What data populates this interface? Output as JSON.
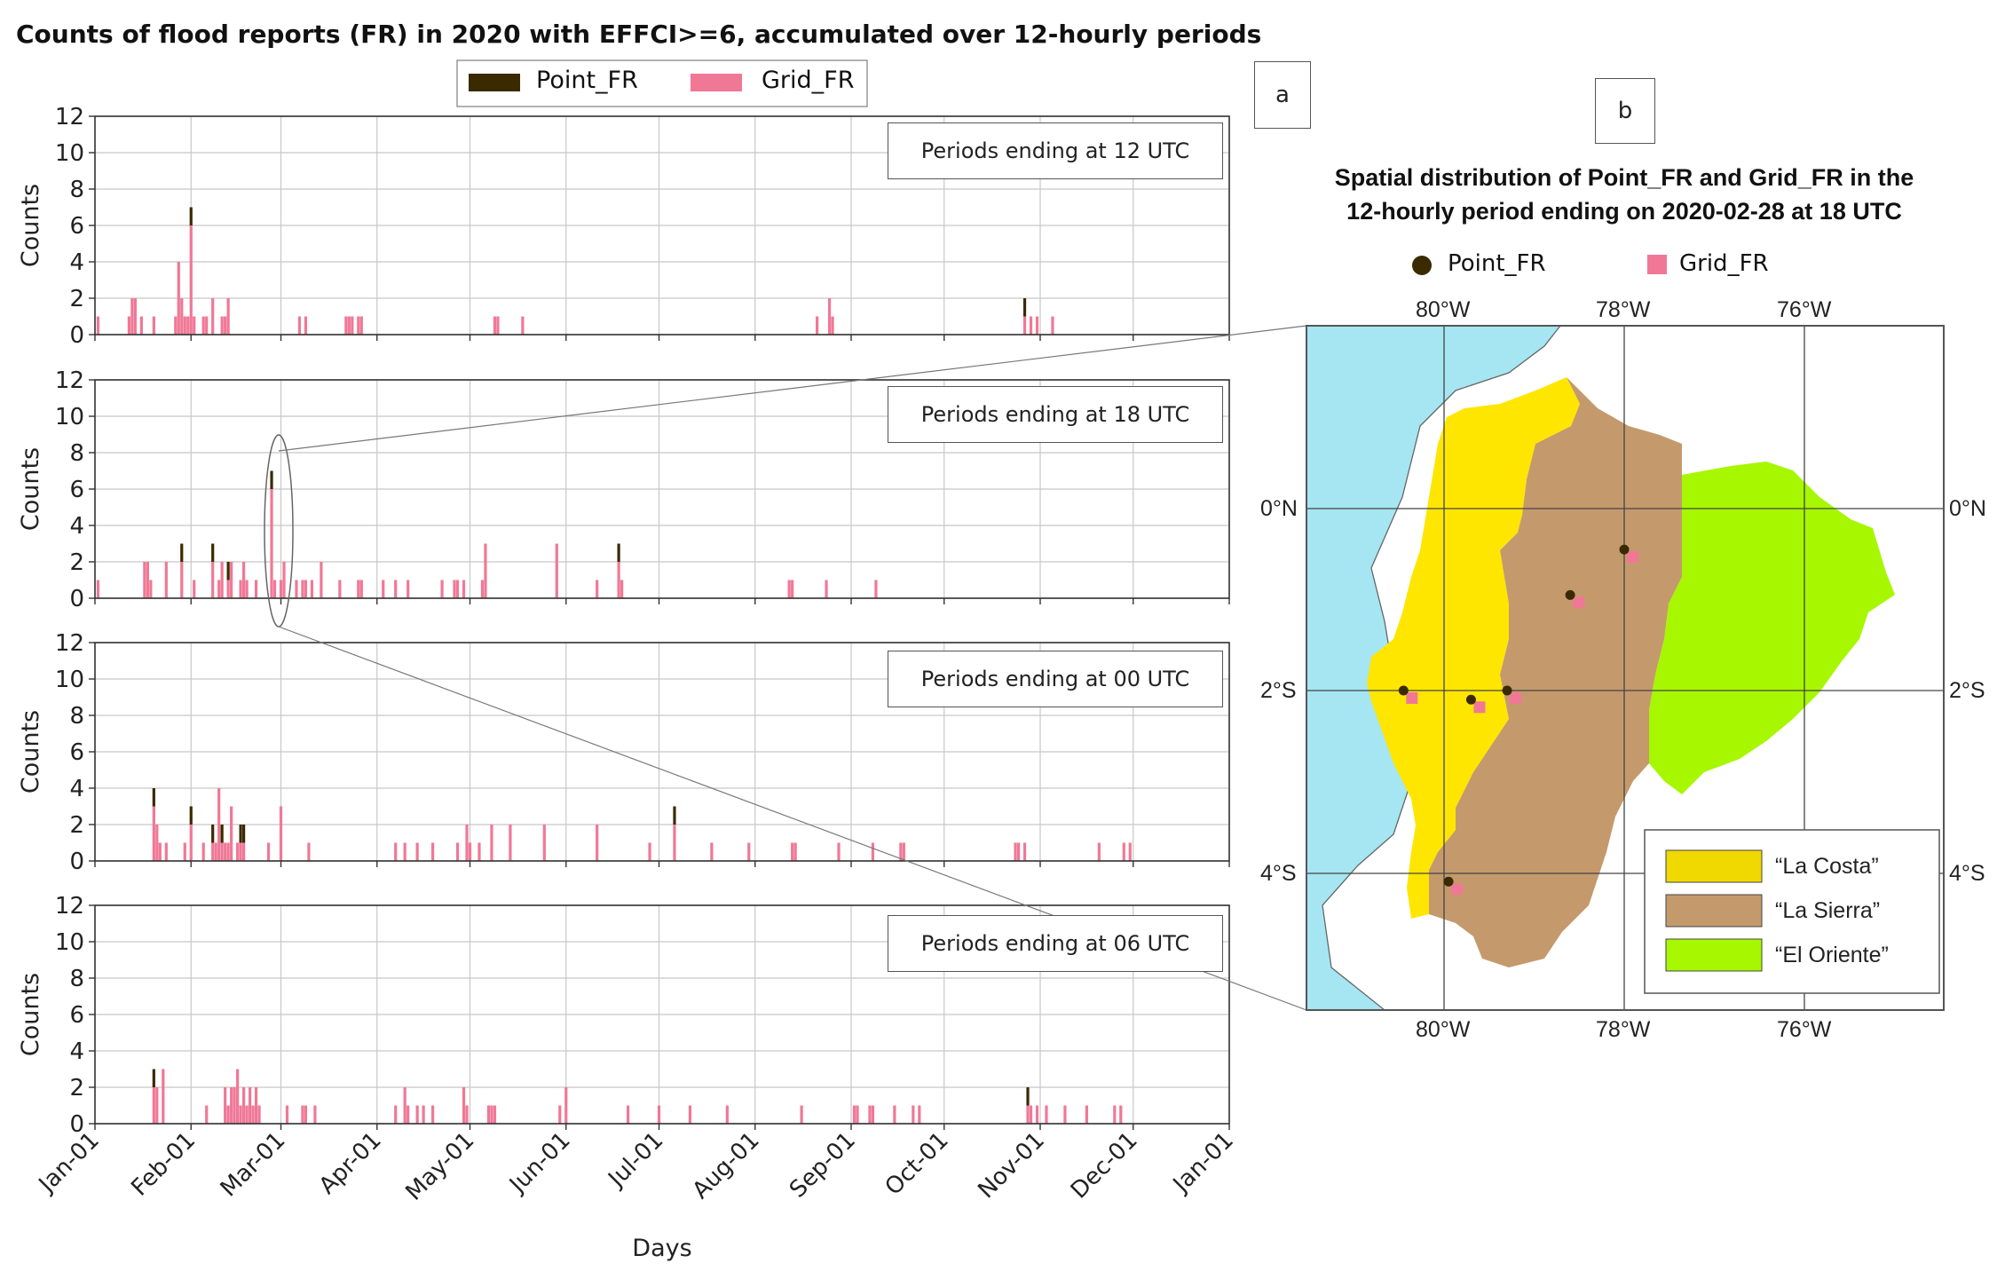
{
  "figure_title": "Counts of flood reports (FR) in 2020 with EFFCI>=6, accumulated over 12-hourly periods",
  "panel_labels": {
    "a": "a",
    "b": "b"
  },
  "legend": {
    "point": "Point_FR",
    "grid": "Grid_FR"
  },
  "colors": {
    "point": "#3a2a00",
    "grid": "#f07896",
    "ocean": "#a5e6f2",
    "costa": "#fee600",
    "sierra": "#c49a6c",
    "oriente": "#a6f700"
  },
  "chart_data": [
    {
      "type": "bar",
      "title": "Periods ending at 12 UTC",
      "ylabel": "Counts",
      "xlabel": "Days",
      "ylim": [
        0,
        12
      ],
      "yticks": [
        0,
        2,
        4,
        6,
        8,
        10,
        12
      ],
      "xticks": [
        "Jan-01",
        "Feb-01",
        "Mar-01",
        "Apr-01",
        "May-01",
        "Jun-01",
        "Jul-01",
        "Aug-01",
        "Sep-01",
        "Oct-01",
        "Nov-01",
        "Dec-01",
        "Jan-01"
      ],
      "x": [
        "2020-01-02",
        "2020-01-12",
        "2020-01-13",
        "2020-01-14",
        "2020-01-16",
        "2020-01-20",
        "2020-01-27",
        "2020-01-28",
        "2020-01-29",
        "2020-01-30",
        "2020-01-31",
        "2020-02-01",
        "2020-02-02",
        "2020-02-05",
        "2020-02-06",
        "2020-02-08",
        "2020-02-11",
        "2020-02-12",
        "2020-02-13",
        "2020-03-07",
        "2020-03-09",
        "2020-03-22",
        "2020-03-23",
        "2020-03-24",
        "2020-03-26",
        "2020-03-27",
        "2020-05-09",
        "2020-05-10",
        "2020-05-18",
        "2020-08-21",
        "2020-08-25",
        "2020-08-26",
        "2020-10-27",
        "2020-10-29",
        "2020-10-31",
        "2020-11-05"
      ],
      "series": [
        {
          "name": "Point_FR",
          "values": [
            0,
            0,
            0,
            0,
            0,
            0,
            0,
            0,
            0,
            0,
            0,
            1,
            0,
            0,
            0,
            0,
            0,
            0,
            0,
            0,
            0,
            0,
            0,
            0,
            0,
            0,
            0,
            0,
            0,
            0,
            0,
            0,
            1,
            0,
            0,
            0
          ]
        },
        {
          "name": "Grid_FR",
          "values": [
            1,
            1,
            2,
            2,
            1,
            1,
            1,
            4,
            2,
            1,
            1,
            6,
            1,
            1,
            1,
            2,
            1,
            1,
            2,
            1,
            1,
            1,
            1,
            1,
            1,
            1,
            1,
            1,
            1,
            1,
            2,
            1,
            1,
            1,
            1,
            1
          ]
        }
      ]
    },
    {
      "type": "bar",
      "title": "Periods ending at 18 UTC",
      "ylabel": "Counts",
      "xlabel": "Days",
      "ylim": [
        0,
        12
      ],
      "yticks": [
        0,
        2,
        4,
        6,
        8,
        10,
        12
      ],
      "xticks": [
        "Jan-01",
        "Feb-01",
        "Mar-01",
        "Apr-01",
        "May-01",
        "Jun-01",
        "Jul-01",
        "Aug-01",
        "Sep-01",
        "Oct-01",
        "Nov-01",
        "Dec-01",
        "Jan-01"
      ],
      "x": [
        "2020-01-02",
        "2020-01-17",
        "2020-01-18",
        "2020-01-19",
        "2020-01-24",
        "2020-01-29",
        "2020-02-02",
        "2020-02-08",
        "2020-02-10",
        "2020-02-11",
        "2020-02-13",
        "2020-02-14",
        "2020-02-17",
        "2020-02-18",
        "2020-02-19",
        "2020-02-22",
        "2020-02-27",
        "2020-02-28",
        "2020-03-01",
        "2020-03-02",
        "2020-03-06",
        "2020-03-08",
        "2020-03-09",
        "2020-03-11",
        "2020-03-14",
        "2020-03-20",
        "2020-03-26",
        "2020-03-27",
        "2020-04-03",
        "2020-04-07",
        "2020-04-11",
        "2020-04-22",
        "2020-04-26",
        "2020-04-27",
        "2020-04-29",
        "2020-05-05",
        "2020-05-06",
        "2020-05-29",
        "2020-06-11",
        "2020-06-18",
        "2020-06-19",
        "2020-08-12",
        "2020-08-13",
        "2020-08-24",
        "2020-09-09"
      ],
      "series": [
        {
          "name": "Point_FR",
          "values": [
            0,
            0,
            0,
            0,
            0,
            1,
            0,
            1,
            0,
            0,
            1,
            0,
            0,
            0,
            0,
            0,
            1,
            0,
            0,
            0,
            0,
            0,
            0,
            0,
            0,
            0,
            0,
            0,
            0,
            0,
            0,
            0,
            0,
            0,
            0,
            0,
            0,
            0,
            0,
            1,
            0,
            0,
            0,
            0,
            0
          ]
        },
        {
          "name": "Grid_FR",
          "values": [
            1,
            2,
            2,
            1,
            2,
            2,
            1,
            2,
            1,
            2,
            1,
            2,
            1,
            2,
            1,
            1,
            6,
            1,
            1,
            2,
            1,
            1,
            1,
            1,
            2,
            1,
            1,
            1,
            1,
            1,
            1,
            1,
            1,
            1,
            1,
            1,
            3,
            3,
            1,
            2,
            1,
            1,
            1,
            1,
            1
          ]
        }
      ]
    },
    {
      "type": "bar",
      "title": "Periods ending at 00 UTC",
      "ylabel": "Counts",
      "xlabel": "Days",
      "ylim": [
        0,
        12
      ],
      "yticks": [
        0,
        2,
        4,
        6,
        8,
        10,
        12
      ],
      "xticks": [
        "Jan-01",
        "Feb-01",
        "Mar-01",
        "Apr-01",
        "May-01",
        "Jun-01",
        "Jul-01",
        "Aug-01",
        "Sep-01",
        "Oct-01",
        "Nov-01",
        "Dec-01",
        "Jan-01"
      ],
      "x": [
        "2020-01-20",
        "2020-01-21",
        "2020-01-22",
        "2020-01-24",
        "2020-01-30",
        "2020-02-01",
        "2020-02-05",
        "2020-02-08",
        "2020-02-09",
        "2020-02-10",
        "2020-02-11",
        "2020-02-12",
        "2020-02-13",
        "2020-02-14",
        "2020-02-16",
        "2020-02-17",
        "2020-02-18",
        "2020-02-26",
        "2020-03-01",
        "2020-03-10",
        "2020-04-07",
        "2020-04-10",
        "2020-04-14",
        "2020-04-19",
        "2020-04-27",
        "2020-04-30",
        "2020-05-01",
        "2020-05-04",
        "2020-05-08",
        "2020-05-14",
        "2020-05-25",
        "2020-06-11",
        "2020-06-28",
        "2020-07-06",
        "2020-07-18",
        "2020-07-30",
        "2020-08-13",
        "2020-08-14",
        "2020-08-28",
        "2020-09-08",
        "2020-09-17",
        "2020-09-18",
        "2020-10-24",
        "2020-10-25",
        "2020-10-27",
        "2020-11-20",
        "2020-11-28",
        "2020-11-30"
      ],
      "series": [
        {
          "name": "Point_FR",
          "values": [
            1,
            0,
            0,
            0,
            0,
            1,
            0,
            1,
            0,
            0,
            1,
            0,
            0,
            0,
            0,
            1,
            1,
            0,
            0,
            0,
            0,
            0,
            0,
            0,
            0,
            0,
            0,
            0,
            0,
            0,
            0,
            0,
            0,
            1,
            0,
            0,
            0,
            0,
            0,
            0,
            0,
            0,
            0,
            0,
            0,
            0,
            0,
            0
          ]
        },
        {
          "name": "Grid_FR",
          "values": [
            3,
            2,
            1,
            1,
            1,
            2,
            1,
            1,
            1,
            4,
            1,
            1,
            1,
            3,
            1,
            1,
            1,
            1,
            3,
            1,
            1,
            1,
            1,
            1,
            1,
            2,
            1,
            1,
            2,
            2,
            2,
            2,
            1,
            2,
            1,
            1,
            1,
            1,
            1,
            1,
            1,
            1,
            1,
            1,
            1,
            1,
            1,
            1
          ]
        }
      ]
    },
    {
      "type": "bar",
      "title": "Periods ending at 06 UTC",
      "ylabel": "Counts",
      "xlabel": "Days",
      "ylim": [
        0,
        12
      ],
      "yticks": [
        0,
        2,
        4,
        6,
        8,
        10,
        12
      ],
      "xticks": [
        "Jan-01",
        "Feb-01",
        "Mar-01",
        "Apr-01",
        "May-01",
        "Jun-01",
        "Jul-01",
        "Aug-01",
        "Sep-01",
        "Oct-01",
        "Nov-01",
        "Dec-01",
        "Jan-01"
      ],
      "x": [
        "2020-01-20",
        "2020-01-21",
        "2020-01-23",
        "2020-02-06",
        "2020-02-12",
        "2020-02-13",
        "2020-02-14",
        "2020-02-15",
        "2020-02-16",
        "2020-02-17",
        "2020-02-18",
        "2020-02-19",
        "2020-02-20",
        "2020-02-21",
        "2020-02-22",
        "2020-02-23",
        "2020-03-03",
        "2020-03-08",
        "2020-03-09",
        "2020-03-12",
        "2020-04-07",
        "2020-04-10",
        "2020-04-11",
        "2020-04-14",
        "2020-04-16",
        "2020-04-19",
        "2020-04-29",
        "2020-04-30",
        "2020-05-07",
        "2020-05-08",
        "2020-05-09",
        "2020-05-30",
        "2020-06-01",
        "2020-06-21",
        "2020-07-01",
        "2020-07-11",
        "2020-07-23",
        "2020-08-16",
        "2020-09-21",
        "2020-09-02",
        "2020-09-03",
        "2020-09-07",
        "2020-09-08",
        "2020-09-15",
        "2020-09-23",
        "2020-10-28",
        "2020-10-29",
        "2020-10-31",
        "2020-11-03",
        "2020-11-09",
        "2020-11-16",
        "2020-11-25",
        "2020-11-27"
      ],
      "series": [
        {
          "name": "Point_FR",
          "values": [
            1,
            0,
            0,
            0,
            0,
            0,
            0,
            0,
            0,
            0,
            0,
            0,
            0,
            0,
            0,
            0,
            0,
            0,
            0,
            0,
            0,
            0,
            0,
            0,
            0,
            0,
            0,
            0,
            0,
            0,
            0,
            0,
            0,
            0,
            0,
            0,
            0,
            0,
            0,
            0,
            0,
            0,
            0,
            0,
            0,
            1,
            0,
            0,
            0,
            0,
            0,
            0,
            0
          ]
        },
        {
          "name": "Grid_FR",
          "values": [
            2,
            2,
            3,
            1,
            2,
            1,
            2,
            2,
            3,
            1,
            2,
            1,
            2,
            1,
            2,
            1,
            1,
            1,
            1,
            1,
            1,
            2,
            1,
            1,
            1,
            1,
            2,
            1,
            1,
            1,
            1,
            1,
            2,
            1,
            1,
            1,
            1,
            1,
            1,
            1,
            1,
            1,
            1,
            1,
            1,
            1,
            1,
            1,
            1,
            1,
            1,
            1,
            1
          ]
        }
      ]
    }
  ],
  "map": {
    "title": [
      "Spatial distribution of Point_FR and Grid_FR in the",
      "12-hourly period ending on 2020-02-28 at 18 UTC"
    ],
    "lon_ticks": [
      "80°W",
      "78°W",
      "76°W"
    ],
    "lat_ticks": [
      "0°N",
      "2°S",
      "4°S"
    ],
    "regions": [
      "“La Costa”",
      "“La Sierra”",
      "“El Oriente”"
    ],
    "points": [
      {
        "lat": -0.45,
        "lon": -78.0
      },
      {
        "lat": -0.95,
        "lon": -78.6
      },
      {
        "lat": -2.0,
        "lon": -80.45
      },
      {
        "lat": -2.0,
        "lon": -79.3
      },
      {
        "lat": -2.1,
        "lon": -79.7
      },
      {
        "lat": -4.1,
        "lon": -79.95
      }
    ]
  }
}
